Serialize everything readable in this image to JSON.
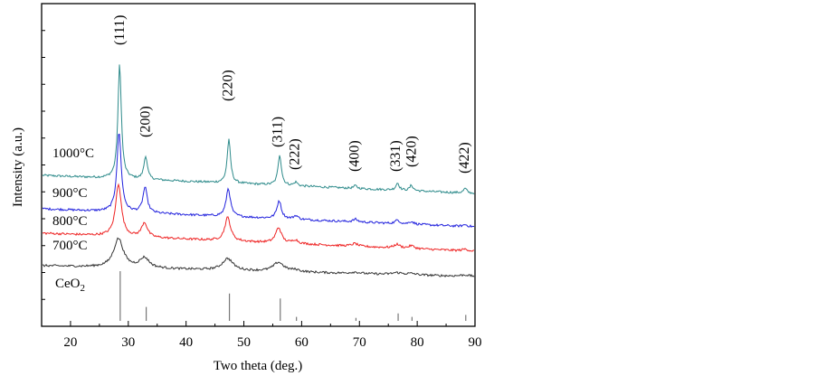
{
  "chart_data": {
    "type": "line",
    "title": "",
    "xlabel": "Two theta (deg.)",
    "ylabel": "Intensity (a.u.)",
    "xlim": [
      15,
      90
    ],
    "xticks": [
      20,
      30,
      40,
      50,
      60,
      70,
      80,
      90
    ],
    "ylim": [
      0,
      100
    ],
    "grid": false,
    "peak_annotations": [
      {
        "label": "(111)",
        "x": 28.5
      },
      {
        "label": "(200)",
        "x": 32.9
      },
      {
        "label": "(220)",
        "x": 47.2
      },
      {
        "label": "(311)",
        "x": 55.8
      },
      {
        "label": "(222)",
        "x": 58.8
      },
      {
        "label": "(400)",
        "x": 69.1
      },
      {
        "label": "(331)",
        "x": 76.2
      },
      {
        "label": "(420)",
        "x": 79.0
      },
      {
        "label": "(422)",
        "x": 88.1
      }
    ],
    "series": [
      {
        "name": "1000°C",
        "color": "#2e8b8b",
        "baseline": 58,
        "slope": -0.14,
        "noise": 0.6,
        "peaks": [
          {
            "x": 28.5,
            "h": 127,
            "w": 0.35
          },
          {
            "x": 33.0,
            "h": 26,
            "w": 0.35
          },
          {
            "x": 47.4,
            "h": 48,
            "w": 0.35
          },
          {
            "x": 56.2,
            "h": 34,
            "w": 0.35
          },
          {
            "x": 59.0,
            "h": 4,
            "w": 0.35
          },
          {
            "x": 69.3,
            "h": 3,
            "w": 0.35
          },
          {
            "x": 76.6,
            "h": 8,
            "w": 0.35
          },
          {
            "x": 79.0,
            "h": 6,
            "w": 0.35
          },
          {
            "x": 88.3,
            "h": 5,
            "w": 0.35
          }
        ]
      },
      {
        "name": "900°C",
        "color": "#2222dd",
        "baseline": 41,
        "slope": -0.08,
        "noise": 0.6,
        "peaks": [
          {
            "x": 28.4,
            "h": 88,
            "w": 0.45
          },
          {
            "x": 32.9,
            "h": 28,
            "w": 0.45
          },
          {
            "x": 47.3,
            "h": 31,
            "w": 0.45
          },
          {
            "x": 56.1,
            "h": 20,
            "w": 0.45
          },
          {
            "x": 59.0,
            "h": 4,
            "w": 0.45
          },
          {
            "x": 69.3,
            "h": 3,
            "w": 0.45
          },
          {
            "x": 76.6,
            "h": 4,
            "w": 0.45
          },
          {
            "x": 79.0,
            "h": 3,
            "w": 0.45
          },
          {
            "x": 88.3,
            "h": 2,
            "w": 0.45
          }
        ]
      },
      {
        "name": "800°C",
        "color": "#ee2222",
        "baseline": 29,
        "slope": -0.05,
        "noise": 0.6,
        "peaks": [
          {
            "x": 28.3,
            "h": 58,
            "w": 0.6
          },
          {
            "x": 32.8,
            "h": 16,
            "w": 0.6
          },
          {
            "x": 47.2,
            "h": 26,
            "w": 0.6
          },
          {
            "x": 56.0,
            "h": 17,
            "w": 0.6
          },
          {
            "x": 58.9,
            "h": 4,
            "w": 0.6
          },
          {
            "x": 69.2,
            "h": 3,
            "w": 0.6
          },
          {
            "x": 76.5,
            "h": 4,
            "w": 0.6
          },
          {
            "x": 79.0,
            "h": 3,
            "w": 0.6
          },
          {
            "x": 88.3,
            "h": 2,
            "w": 0.6
          }
        ]
      },
      {
        "name": "700°C",
        "color": "#333333",
        "baseline": 18,
        "slope": 0.05,
        "noise": 0.6,
        "peaks": [
          {
            "x": 28.3,
            "h": 32,
            "w": 1.0
          },
          {
            "x": 32.8,
            "h": 11,
            "w": 1.0
          },
          {
            "x": 47.2,
            "h": 13,
            "w": 1.1
          },
          {
            "x": 56.0,
            "h": 10,
            "w": 1.1
          },
          {
            "x": 58.9,
            "h": 2,
            "w": 1.0
          },
          {
            "x": 69.2,
            "h": 1.5,
            "w": 1.0
          },
          {
            "x": 76.5,
            "h": 2,
            "w": 1.0
          },
          {
            "x": 79.0,
            "h": 1.5,
            "w": 1.0
          },
          {
            "x": 88.3,
            "h": 1.5,
            "w": 1.0
          }
        ]
      }
    ],
    "reference": {
      "name": "CeO2",
      "label_main": "CeO",
      "label_sub": "2",
      "color": "#777777",
      "sticks": [
        {
          "x": 28.6,
          "h": 100
        },
        {
          "x": 33.1,
          "h": 28
        },
        {
          "x": 47.5,
          "h": 55
        },
        {
          "x": 56.3,
          "h": 45
        },
        {
          "x": 59.1,
          "h": 8
        },
        {
          "x": 69.4,
          "h": 6
        },
        {
          "x": 76.7,
          "h": 15
        },
        {
          "x": 79.1,
          "h": 8
        },
        {
          "x": 88.4,
          "h": 12
        }
      ]
    }
  }
}
